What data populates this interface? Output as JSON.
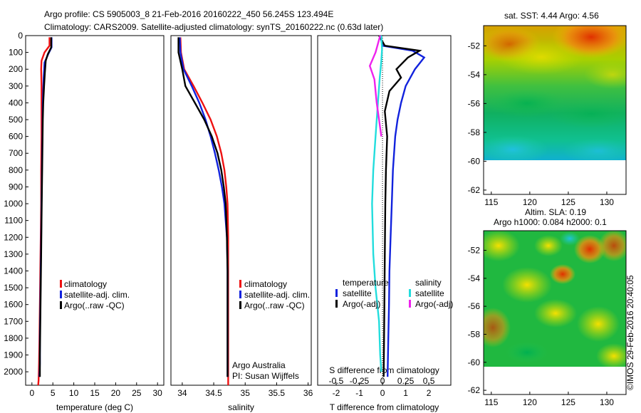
{
  "header": {
    "line1": "Argo profile: CS 5905003_8 21-Feb-2016 20160222_450 56.245S 123.494E",
    "line2": "Climatology: CARS2009. Satellite-adjusted climatology: synTS_20160222.nc (0.63d later)"
  },
  "colors": {
    "climatology": "#ee1111",
    "satellite": "#1122dd",
    "argo": "#000000",
    "sat_salinity": "#22dddd",
    "argo_salinity": "#ee22ee"
  },
  "legend": {
    "climatology": "climatology",
    "satellite_adj": "satellite-adj. clim.",
    "argo_raw": "Argo(..raw -QC)",
    "temperature_head": "temperature",
    "salinity_head": "salinity",
    "satellite": "satellite",
    "argo_adj": "Argo(-adj)"
  },
  "credit": {
    "line1": "Argo Australia",
    "line2": "PI: Susan Wijffels"
  },
  "sst_map": {
    "title": "sat. SST: 4.44 Argo: 4.56",
    "xticks": [
      "115",
      "120",
      "125",
      "130"
    ],
    "yticks": [
      "-52",
      "-54",
      "-56",
      "-58",
      "-60",
      "-62"
    ],
    "xlim": [
      114,
      132.5
    ],
    "ylim": [
      -62.3,
      -50.6
    ],
    "data_south_limit": -60
  },
  "sla_map": {
    "title1": "Altim. SLA: 0.19",
    "title2": "Argo h1000: 0.084 h2000: 0.1",
    "xticks": [
      "115",
      "120",
      "125",
      "130"
    ],
    "yticks": [
      "-52",
      "-54",
      "-56",
      "-58",
      "-60",
      "-62"
    ],
    "xlim": [
      114,
      132.5
    ],
    "ylim": [
      -62.3,
      -50.6
    ],
    "data_south_limit": -60
  },
  "side_note": "©IMOS 29-Feb-2016 20:40:05",
  "chart_data": [
    {
      "type": "line",
      "xlabel": "temperature (deg C)",
      "xticks": [
        "0",
        "5",
        "10",
        "15",
        "20",
        "25",
        "30"
      ],
      "xlim": [
        -1.5,
        31.5
      ],
      "ylim": [
        0,
        2080
      ],
      "yticks": [
        "0",
        "100",
        "200",
        "300",
        "400",
        "500",
        "600",
        "700",
        "800",
        "900",
        "1000",
        "1100",
        "1200",
        "1300",
        "1400",
        "1500",
        "1600",
        "1700",
        "1800",
        "1900",
        "2000"
      ],
      "series": [
        {
          "name": "climatology",
          "color": "#ee1111",
          "x": [
            4.2,
            4.2,
            3.0,
            2.3,
            2.2,
            2.3,
            2.3,
            2.3,
            2.3,
            2.2,
            2.2,
            2.1,
            2.0,
            1.9,
            1.8,
            1.7,
            1.6,
            1.5
          ],
          "y": [
            10,
            60,
            100,
            150,
            200,
            300,
            400,
            500,
            600,
            800,
            1000,
            1200,
            1400,
            1600,
            1800,
            1950,
            2050,
            2080
          ]
        },
        {
          "name": "satellite-adj. clim.",
          "color": "#1122dd",
          "x": [
            4.7,
            4.7,
            3.9,
            3.0,
            2.8,
            2.6,
            2.5,
            2.4,
            2.3,
            2.2,
            2.1,
            2.0,
            1.9,
            1.9,
            1.8
          ],
          "y": [
            10,
            70,
            110,
            160,
            250,
            400,
            600,
            800,
            1000,
            1200,
            1400,
            1600,
            1800,
            1950,
            2030
          ]
        },
        {
          "name": "Argo(..raw -QC)",
          "color": "#000000",
          "x": [
            4.6,
            4.6,
            3.8,
            3.3,
            3.1,
            2.9,
            2.7,
            2.6,
            2.5,
            2.4,
            2.3,
            2.2,
            2.1,
            2.0,
            1.9,
            1.9
          ],
          "y": [
            10,
            70,
            110,
            150,
            220,
            300,
            400,
            500,
            700,
            900,
            1100,
            1300,
            1500,
            1700,
            1900,
            2030
          ]
        }
      ]
    },
    {
      "type": "line",
      "xlabel": "salinity",
      "xticks": [
        "34",
        "34.5",
        "35",
        "35.5",
        "36"
      ],
      "xtick_values": [
        34,
        34.5,
        35,
        35.5,
        36
      ],
      "xlim": [
        33.82,
        36.05
      ],
      "ylim": [
        0,
        2080
      ],
      "series": [
        {
          "name": "climatology",
          "color": "#ee1111",
          "x": [
            33.97,
            33.98,
            34.03,
            34.18,
            34.32,
            34.45,
            34.55,
            34.62,
            34.67,
            34.7,
            34.72,
            34.73,
            34.73,
            34.73,
            34.73,
            34.73
          ],
          "y": [
            10,
            100,
            200,
            300,
            400,
            500,
            600,
            700,
            800,
            900,
            1000,
            1200,
            1400,
            1600,
            1800,
            2080
          ]
        },
        {
          "name": "satellite-adj. clim.",
          "color": "#1122dd",
          "x": [
            33.96,
            33.97,
            34.02,
            34.15,
            34.27,
            34.37,
            34.45,
            34.52,
            34.58,
            34.63,
            34.67,
            34.71,
            34.72,
            34.72,
            34.72
          ],
          "y": [
            10,
            100,
            200,
            300,
            400,
            500,
            600,
            700,
            800,
            900,
            1000,
            1200,
            1400,
            1700,
            2030
          ]
        },
        {
          "name": "Argo(..raw -QC)",
          "color": "#000000",
          "x": [
            33.94,
            33.94,
            34.0,
            34.05,
            34.2,
            34.35,
            34.47,
            34.56,
            34.62,
            34.66,
            34.69,
            34.71,
            34.72,
            34.72,
            34.72
          ],
          "y": [
            10,
            100,
            200,
            300,
            400,
            500,
            600,
            700,
            800,
            900,
            1000,
            1200,
            1400,
            1700,
            2030
          ]
        }
      ]
    },
    {
      "type": "line",
      "xlabel": "T difference from climatology",
      "top_label": "S difference from climatology",
      "xticks": [
        "-2",
        "-1",
        "0",
        "1",
        "2"
      ],
      "xtick_values": [
        -2,
        -1,
        0,
        1,
        2
      ],
      "top_xticks": [
        "-0.5",
        "-0.25",
        "0",
        "0.25",
        "0.5"
      ],
      "xlim": [
        -2.8,
        2.95
      ],
      "ylim": [
        0,
        2080
      ],
      "series": [
        {
          "name": "temperature satellite",
          "color": "#1122dd",
          "x": [
            -0.1,
            0.0,
            1.3,
            1.8,
            1.4,
            1.0,
            0.8,
            0.65,
            0.55,
            0.45,
            0.4,
            0.35,
            0.3,
            0.28,
            0.25,
            0.22
          ],
          "y": [
            0,
            60,
            90,
            130,
            200,
            300,
            400,
            500,
            600,
            800,
            1000,
            1200,
            1400,
            1600,
            1800,
            2030
          ]
        },
        {
          "name": "temperature Argo(-adj)",
          "color": "#000000",
          "x": [
            -0.15,
            0.1,
            1.6,
            1.1,
            0.6,
            0.8,
            0.3,
            0.1,
            0.2,
            0.15,
            0.12,
            0.1,
            0.08,
            0.06,
            0.05
          ],
          "y": [
            0,
            60,
            90,
            130,
            200,
            250,
            330,
            450,
            600,
            800,
            1000,
            1300,
            1600,
            1900,
            2030
          ]
        },
        {
          "name": "salinity satellite",
          "color": "#22dddd",
          "x": [
            -0.05,
            -0.02,
            -0.05,
            -0.12,
            -0.2,
            -0.3,
            -0.4,
            -0.45,
            -0.4,
            -0.3,
            -0.15,
            -0.1,
            -0.05
          ],
          "y": [
            0,
            80,
            150,
            250,
            400,
            600,
            800,
            1000,
            1300,
            1500,
            1700,
            1900,
            2000
          ]
        },
        {
          "name": "salinity Argo(-adj)",
          "color": "#ee22ee",
          "x": [
            -0.1,
            -0.3,
            -0.55,
            -0.35,
            -0.25,
            -0.15,
            -0.05
          ],
          "y": [
            0,
            100,
            180,
            260,
            400,
            500,
            600
          ]
        }
      ]
    }
  ]
}
